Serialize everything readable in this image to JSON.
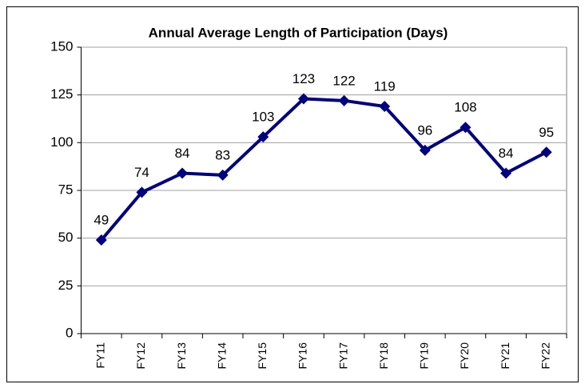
{
  "chart_data": {
    "type": "line",
    "title": "Annual Average Length of Participation (Days)",
    "categories": [
      "FY11",
      "FY12",
      "FY13",
      "FY14",
      "FY15",
      "FY16",
      "FY17",
      "FY18",
      "FY19",
      "FY20",
      "FY21",
      "FY22"
    ],
    "values": [
      49,
      74,
      84,
      83,
      103,
      123,
      122,
      119,
      96,
      108,
      84,
      95
    ],
    "color": "#000080",
    "ylim": [
      0,
      150
    ],
    "yticks": [
      0,
      25,
      50,
      75,
      100,
      125,
      150
    ],
    "grid": true
  }
}
